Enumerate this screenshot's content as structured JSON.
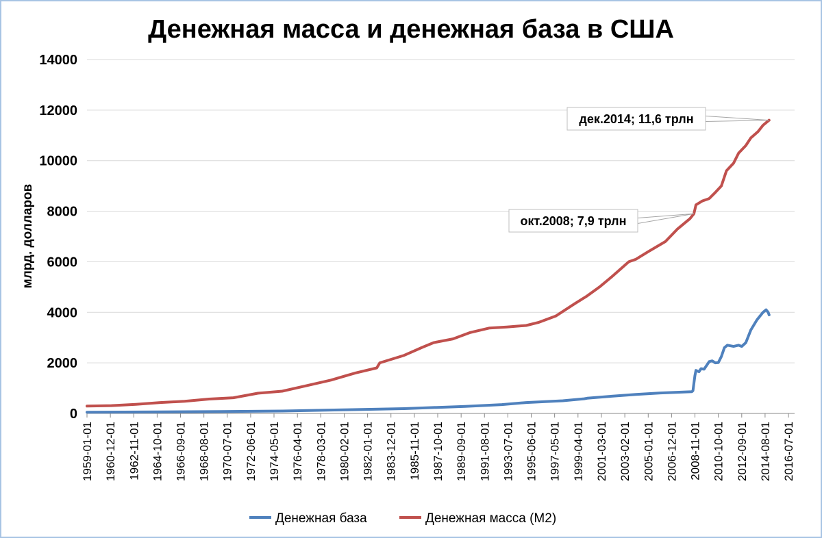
{
  "chart_data": {
    "type": "line",
    "title": "Денежная масса и денежная база в США",
    "ylabel": "млрд. долларов",
    "xlabel": "",
    "ylim": [
      0,
      14000
    ],
    "yticks": [
      0,
      2000,
      4000,
      6000,
      8000,
      10000,
      12000,
      14000
    ],
    "xlim": [
      "1959-01-01",
      "2017-01-01"
    ],
    "xticks": [
      "1959-01-01",
      "1960-12-01",
      "1962-11-01",
      "1964-10-01",
      "1966-09-01",
      "1968-08-01",
      "1970-07-01",
      "1972-06-01",
      "1974-05-01",
      "1976-04-01",
      "1978-03-01",
      "1980-02-01",
      "1982-01-01",
      "1983-12-01",
      "1985-11-01",
      "1987-10-01",
      "1989-09-01",
      "1991-08-01",
      "1993-07-01",
      "1995-06-01",
      "1997-05-01",
      "1999-04-01",
      "2001-03-01",
      "2003-02-01",
      "2005-01-01",
      "2006-12-01",
      "2008-11-01",
      "2010-10-01",
      "2012-09-01",
      "2014-08-01",
      "2016-07-01"
    ],
    "grid": true,
    "legend": "bottom",
    "colors": {
      "base": "#4f81bd",
      "m2": "#c0504d"
    },
    "series": [
      {
        "name": "Денежная база",
        "key": "base",
        "points": [
          [
            "1959-01-01",
            50
          ],
          [
            "1965-01-01",
            60
          ],
          [
            "1970-01-01",
            75
          ],
          [
            "1975-01-01",
            95
          ],
          [
            "1980-01-01",
            140
          ],
          [
            "1985-01-01",
            190
          ],
          [
            "1990-01-01",
            280
          ],
          [
            "1993-01-01",
            350
          ],
          [
            "1995-01-01",
            430
          ],
          [
            "1998-01-01",
            500
          ],
          [
            "1999-10-01",
            580
          ],
          [
            "2000-01-01",
            600
          ],
          [
            "2002-01-01",
            680
          ],
          [
            "2004-01-01",
            750
          ],
          [
            "2006-01-01",
            810
          ],
          [
            "2008-08-01",
            860
          ],
          [
            "2008-09-01",
            900
          ],
          [
            "2008-11-01",
            1500
          ],
          [
            "2008-12-01",
            1700
          ],
          [
            "2009-03-01",
            1650
          ],
          [
            "2009-05-01",
            1770
          ],
          [
            "2009-08-01",
            1750
          ],
          [
            "2010-01-01",
            2050
          ],
          [
            "2010-04-01",
            2080
          ],
          [
            "2010-07-01",
            2000
          ],
          [
            "2010-10-01",
            2010
          ],
          [
            "2011-01-01",
            2250
          ],
          [
            "2011-04-01",
            2600
          ],
          [
            "2011-07-01",
            2700
          ],
          [
            "2012-01-01",
            2650
          ],
          [
            "2012-06-01",
            2700
          ],
          [
            "2012-09-01",
            2650
          ],
          [
            "2013-01-01",
            2800
          ],
          [
            "2013-06-01",
            3300
          ],
          [
            "2013-12-01",
            3700
          ],
          [
            "2014-06-01",
            4000
          ],
          [
            "2014-09-01",
            4100
          ],
          [
            "2014-11-01",
            4000
          ],
          [
            "2014-12-01",
            3900
          ]
        ]
      },
      {
        "name": "Денежная масса (M2)",
        "key": "m2",
        "points": [
          [
            "1959-01-01",
            290
          ],
          [
            "1961-01-01",
            310
          ],
          [
            "1963-01-01",
            360
          ],
          [
            "1965-01-01",
            430
          ],
          [
            "1967-01-01",
            480
          ],
          [
            "1969-01-01",
            570
          ],
          [
            "1971-01-01",
            620
          ],
          [
            "1973-01-01",
            800
          ],
          [
            "1975-01-01",
            880
          ],
          [
            "1977-01-01",
            1100
          ],
          [
            "1979-01-01",
            1320
          ],
          [
            "1981-01-01",
            1600
          ],
          [
            "1982-10-01",
            1800
          ],
          [
            "1983-01-01",
            2000
          ],
          [
            "1985-01-01",
            2300
          ],
          [
            "1986-06-01",
            2600
          ],
          [
            "1987-06-01",
            2800
          ],
          [
            "1989-01-01",
            2950
          ],
          [
            "1990-06-01",
            3200
          ],
          [
            "1992-01-01",
            3380
          ],
          [
            "1993-06-01",
            3420
          ],
          [
            "1995-01-01",
            3480
          ],
          [
            "1996-01-01",
            3600
          ],
          [
            "1997-06-01",
            3850
          ],
          [
            "1999-01-01",
            4350
          ],
          [
            "2000-01-01",
            4650
          ],
          [
            "2001-01-01",
            5000
          ],
          [
            "2002-01-01",
            5400
          ],
          [
            "2003-06-01",
            6000
          ],
          [
            "2004-01-01",
            6100
          ],
          [
            "2005-01-01",
            6400
          ],
          [
            "2006-06-01",
            6800
          ],
          [
            "2007-06-01",
            7300
          ],
          [
            "2008-06-01",
            7700
          ],
          [
            "2008-10-01",
            7900
          ],
          [
            "2008-12-01",
            8250
          ],
          [
            "2009-06-01",
            8400
          ],
          [
            "2010-01-01",
            8500
          ],
          [
            "2010-06-01",
            8700
          ],
          [
            "2011-01-01",
            9000
          ],
          [
            "2011-06-01",
            9600
          ],
          [
            "2012-01-01",
            9900
          ],
          [
            "2012-06-01",
            10300
          ],
          [
            "2013-01-01",
            10600
          ],
          [
            "2013-06-01",
            10900
          ],
          [
            "2014-01-01",
            11150
          ],
          [
            "2014-06-01",
            11400
          ],
          [
            "2014-12-01",
            11600
          ]
        ]
      }
    ],
    "annotations": [
      {
        "text": "дек.2014; 11,6 трлн",
        "x": "2014-12-01",
        "y": 11600
      },
      {
        "text": "окт.2008; 7,9 трлн",
        "x": "2008-10-01",
        "y": 7900
      }
    ]
  }
}
